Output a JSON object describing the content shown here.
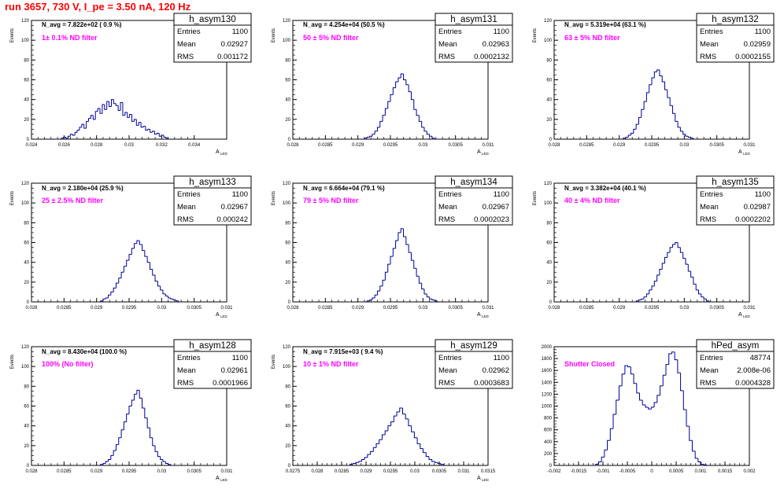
{
  "run_title": "run 3657,   730 V, I_pe = 3.50 nA, 120 Hz",
  "colors": {
    "title": "#ff0000",
    "filter_label": "#ff00ff",
    "hist_line": "#000099",
    "frame": "#000000"
  },
  "chart_data": [
    {
      "type": "histogram",
      "name": "h_asym130",
      "stats": {
        "entries": "1100",
        "mean": "0.02927",
        "rms": "0.001172"
      },
      "navg": "N_avg = 7.822e+02 ( 0.9 %)",
      "filter": "1± 0.1% ND filter",
      "ylabel": "Events",
      "xlabel": "A",
      "xlabel_sub": "LED",
      "xlim": [
        0.024,
        0.036
      ],
      "ylim": [
        0,
        120
      ],
      "xticks": [
        0.024,
        0.026,
        0.028,
        0.03,
        0.032,
        0.034
      ],
      "xtick_labels": [
        "0.024",
        "0.026",
        "0.028",
        "0.03",
        "0.032",
        "0.034"
      ],
      "yticks": [
        0,
        20,
        40,
        60,
        80,
        100,
        120
      ],
      "bin_x": [
        0.0259,
        0.02604,
        0.02618,
        0.02632,
        0.02646,
        0.0266,
        0.02674,
        0.02688,
        0.02702,
        0.02716,
        0.0273,
        0.02744,
        0.02758,
        0.02772,
        0.02786,
        0.028,
        0.02814,
        0.02828,
        0.02842,
        0.02856,
        0.0287,
        0.02884,
        0.02898,
        0.02912,
        0.02926,
        0.0294,
        0.02954,
        0.02968,
        0.02982,
        0.02996,
        0.0301,
        0.03024,
        0.03038,
        0.03052,
        0.03066,
        0.0308,
        0.03094,
        0.03108,
        0.03122,
        0.03136,
        0.0315,
        0.03164,
        0.03178,
        0.03192,
        0.03206,
        0.0322,
        0.03234
      ],
      "counts": [
        1,
        2,
        1,
        3,
        5,
        4,
        7,
        9,
        12,
        15,
        11,
        18,
        21,
        24,
        20,
        28,
        31,
        26,
        35,
        30,
        38,
        33,
        40,
        36,
        34,
        29,
        37,
        24,
        27,
        22,
        25,
        18,
        20,
        14,
        17,
        12,
        13,
        9,
        10,
        7,
        8,
        5,
        6,
        3,
        4,
        2,
        1
      ]
    },
    {
      "type": "histogram",
      "name": "h_asym131",
      "stats": {
        "entries": "1100",
        "mean": "0.02963",
        "rms": "0.0002132"
      },
      "navg": "N_avg = 4.254e+04 (50.5 %)",
      "filter": "50 ± 5% ND filter",
      "ylabel": "Events",
      "xlabel": "A",
      "xlabel_sub": "LED",
      "xlim": [
        0.028,
        0.031
      ],
      "ylim": [
        0,
        120
      ],
      "xticks": [
        0.028,
        0.0285,
        0.029,
        0.0295,
        0.03,
        0.0305,
        0.031
      ],
      "xtick_labels": [
        "0.028",
        "0.0285",
        "0.029",
        "0.0295",
        "0.03",
        "0.0305",
        "0.031"
      ],
      "yticks": [
        0,
        20,
        40,
        60,
        80,
        100,
        120
      ],
      "bin_x": [
        0.02912,
        0.02916,
        0.0292,
        0.02924,
        0.02928,
        0.02932,
        0.02936,
        0.0294,
        0.02944,
        0.02948,
        0.02952,
        0.02956,
        0.0296,
        0.02964,
        0.02968,
        0.02972,
        0.02976,
        0.0298,
        0.02984,
        0.02988,
        0.02992,
        0.02996,
        0.03,
        0.03004,
        0.03008,
        0.03012,
        0.03016
      ],
      "counts": [
        1,
        2,
        3,
        5,
        8,
        12,
        18,
        24,
        31,
        38,
        45,
        52,
        58,
        62,
        66,
        60,
        55,
        48,
        40,
        30,
        24,
        18,
        12,
        8,
        5,
        3,
        1
      ]
    },
    {
      "type": "histogram",
      "name": "h_asym132",
      "stats": {
        "entries": "1100",
        "mean": "0.02959",
        "rms": "0.0002155"
      },
      "navg": "N_avg = 5.319e+04 (63.1 %)",
      "filter": "63 ± 5% ND filter",
      "ylabel": "Events",
      "xlabel": "A",
      "xlabel_sub": "LED",
      "xlim": [
        0.028,
        0.031
      ],
      "ylim": [
        0,
        120
      ],
      "xticks": [
        0.028,
        0.0285,
        0.029,
        0.0295,
        0.03,
        0.0305,
        0.031
      ],
      "xtick_labels": [
        "0.028",
        "0.0285",
        "0.029",
        "0.0295",
        "0.03",
        "0.0305",
        "0.031"
      ],
      "yticks": [
        0,
        20,
        40,
        60,
        80,
        100,
        120
      ],
      "bin_x": [
        0.02908,
        0.02912,
        0.02916,
        0.0292,
        0.02924,
        0.02928,
        0.02932,
        0.02936,
        0.0294,
        0.02944,
        0.02948,
        0.02952,
        0.02956,
        0.0296,
        0.02964,
        0.02968,
        0.02972,
        0.02976,
        0.0298,
        0.02984,
        0.02988,
        0.02992,
        0.02996,
        0.03,
        0.03004,
        0.03008,
        0.03012
      ],
      "counts": [
        1,
        2,
        4,
        6,
        10,
        15,
        22,
        30,
        38,
        47,
        55,
        62,
        68,
        70,
        64,
        58,
        50,
        42,
        34,
        26,
        18,
        12,
        8,
        5,
        3,
        2,
        1
      ]
    },
    {
      "type": "histogram",
      "name": "h_asym133",
      "stats": {
        "entries": "1100",
        "mean": "0.02967",
        "rms": "0.000242"
      },
      "navg": "N_avg = 2.180e+04 (25.9 %)",
      "filter": "25 ± 2.5% ND filter",
      "ylabel": "Events",
      "xlabel": "A",
      "xlabel_sub": "LED",
      "xlim": [
        0.028,
        0.031
      ],
      "ylim": [
        0,
        120
      ],
      "xticks": [
        0.028,
        0.0285,
        0.029,
        0.0295,
        0.03,
        0.0305,
        0.031
      ],
      "xtick_labels": [
        "0.028",
        "0.0285",
        "0.029",
        "0.0295",
        "0.03",
        "0.0305",
        "0.031"
      ],
      "yticks": [
        0,
        20,
        40,
        60,
        80,
        100,
        120
      ],
      "bin_x": [
        0.02908,
        0.02912,
        0.02916,
        0.0292,
        0.02924,
        0.02928,
        0.02932,
        0.02936,
        0.0294,
        0.02944,
        0.02948,
        0.02952,
        0.02956,
        0.0296,
        0.02964,
        0.02968,
        0.02972,
        0.02976,
        0.0298,
        0.02984,
        0.02988,
        0.02992,
        0.02996,
        0.03,
        0.03004,
        0.03008,
        0.03012,
        0.03016,
        0.0302,
        0.03024
      ],
      "counts": [
        1,
        3,
        4,
        7,
        10,
        14,
        19,
        24,
        30,
        36,
        42,
        48,
        54,
        59,
        62,
        58,
        52,
        46,
        40,
        33,
        27,
        21,
        16,
        12,
        8,
        6,
        4,
        3,
        2,
        1
      ]
    },
    {
      "type": "histogram",
      "name": "h_asym134",
      "stats": {
        "entries": "1100",
        "mean": "0.02967",
        "rms": "0.0002023"
      },
      "navg": "N_avg = 6.664e+04 (79.1 %)",
      "filter": "79 ± 5% ND filter",
      "ylabel": "Events",
      "xlabel": "A",
      "xlabel_sub": "LED",
      "xlim": [
        0.028,
        0.031
      ],
      "ylim": [
        0,
        120
      ],
      "xticks": [
        0.028,
        0.0285,
        0.029,
        0.0295,
        0.03,
        0.0305,
        0.031
      ],
      "xtick_labels": [
        "0.028",
        "0.0285",
        "0.029",
        "0.0295",
        "0.03",
        "0.0305",
        "0.031"
      ],
      "yticks": [
        0,
        20,
        40,
        60,
        80,
        100,
        120
      ],
      "bin_x": [
        0.02916,
        0.0292,
        0.02924,
        0.02928,
        0.02932,
        0.02936,
        0.0294,
        0.02944,
        0.02948,
        0.02952,
        0.02956,
        0.0296,
        0.02964,
        0.02968,
        0.02972,
        0.02976,
        0.0298,
        0.02984,
        0.02988,
        0.02992,
        0.02996,
        0.03,
        0.03004,
        0.03008,
        0.03012,
        0.03016,
        0.0302
      ],
      "counts": [
        1,
        2,
        4,
        7,
        11,
        16,
        22,
        30,
        38,
        46,
        54,
        62,
        70,
        74,
        66,
        58,
        50,
        42,
        34,
        26,
        19,
        13,
        8,
        5,
        3,
        2,
        1
      ]
    },
    {
      "type": "histogram",
      "name": "h_asym135",
      "stats": {
        "entries": "1100",
        "mean": "0.02987",
        "rms": "0.0002202"
      },
      "navg": "N_avg = 3.382e+04 (40.1 %)",
      "filter": "40 ± 4% ND filter",
      "ylabel": "Events",
      "xlabel": "A",
      "xlabel_sub": "LED",
      "xlim": [
        0.028,
        0.031
      ],
      "ylim": [
        0,
        120
      ],
      "xticks": [
        0.028,
        0.0285,
        0.029,
        0.0295,
        0.03,
        0.0305,
        0.031
      ],
      "xtick_labels": [
        "0.028",
        "0.0285",
        "0.029",
        "0.0295",
        "0.03",
        "0.0305",
        "0.031"
      ],
      "yticks": [
        0,
        20,
        40,
        60,
        80,
        100,
        120
      ],
      "bin_x": [
        0.02928,
        0.02932,
        0.02936,
        0.0294,
        0.02944,
        0.02948,
        0.02952,
        0.02956,
        0.0296,
        0.02964,
        0.02968,
        0.02972,
        0.02976,
        0.0298,
        0.02984,
        0.02988,
        0.02992,
        0.02996,
        0.03,
        0.03004,
        0.03008,
        0.03012,
        0.03016,
        0.0302,
        0.03024,
        0.03028,
        0.03032,
        0.03036
      ],
      "counts": [
        1,
        2,
        3,
        5,
        8,
        12,
        16,
        21,
        27,
        33,
        39,
        45,
        50,
        55,
        58,
        60,
        55,
        50,
        44,
        38,
        31,
        25,
        18,
        12,
        8,
        5,
        3,
        1
      ]
    },
    {
      "type": "histogram",
      "name": "h_asym128",
      "stats": {
        "entries": "1100",
        "mean": "0.02961",
        "rms": "0.0001966"
      },
      "navg": "N_avg = 8.430e+04 (100.0 %)",
      "filter": "100% (No filter)",
      "ylabel": "Events",
      "xlabel": "A",
      "xlabel_sub": "LED",
      "xlim": [
        0.028,
        0.031
      ],
      "ylim": [
        0,
        120
      ],
      "xticks": [
        0.028,
        0.0285,
        0.029,
        0.0295,
        0.03,
        0.0305,
        0.031
      ],
      "xtick_labels": [
        "0.028",
        "0.0285",
        "0.029",
        "0.0295",
        "0.03",
        "0.0305",
        "0.031"
      ],
      "yticks": [
        0,
        20,
        40,
        60,
        80,
        100,
        120
      ],
      "bin_x": [
        0.02908,
        0.02912,
        0.02916,
        0.0292,
        0.02924,
        0.02928,
        0.02932,
        0.02936,
        0.0294,
        0.02944,
        0.02948,
        0.02952,
        0.02956,
        0.0296,
        0.02964,
        0.02968,
        0.02972,
        0.02976,
        0.0298,
        0.02984,
        0.02988,
        0.02992,
        0.02996,
        0.03,
        0.03004,
        0.03008,
        0.03012
      ],
      "counts": [
        1,
        2,
        4,
        6,
        10,
        15,
        21,
        28,
        36,
        44,
        52,
        60,
        66,
        72,
        76,
        68,
        58,
        48,
        38,
        28,
        20,
        14,
        9,
        6,
        4,
        2,
        1
      ]
    },
    {
      "type": "histogram",
      "name": "h_asym129",
      "stats": {
        "entries": "1100",
        "mean": "0.02962",
        "rms": "0.0003683"
      },
      "navg": "N_avg = 7.915e+03 ( 9.4 %)",
      "filter": "10 ± 1% ND filter",
      "ylabel": "Events",
      "xlabel": "A",
      "xlabel_sub": "LED",
      "xlim": [
        0.0275,
        0.0315
      ],
      "ylim": [
        0,
        120
      ],
      "xticks": [
        0.0275,
        0.028,
        0.0285,
        0.029,
        0.0295,
        0.03,
        0.0305,
        0.031,
        0.0315
      ],
      "xtick_labels": [
        "0.0275",
        "0.028",
        "0.0285",
        "0.029",
        "0.0295",
        "0.03",
        "0.0305",
        "0.031",
        "0.0315"
      ],
      "yticks": [
        0,
        20,
        40,
        60,
        80,
        100,
        120
      ],
      "bin_x": [
        0.0287,
        0.02876,
        0.02882,
        0.02888,
        0.02894,
        0.029,
        0.02906,
        0.02912,
        0.02918,
        0.02924,
        0.0293,
        0.02936,
        0.02942,
        0.02948,
        0.02954,
        0.0296,
        0.02966,
        0.02972,
        0.02978,
        0.02984,
        0.0299,
        0.02996,
        0.03002,
        0.03008,
        0.03014,
        0.0302,
        0.03026,
        0.03032,
        0.03038,
        0.03044,
        0.0305,
        0.03056
      ],
      "counts": [
        1,
        2,
        3,
        4,
        6,
        8,
        11,
        14,
        18,
        22,
        26,
        31,
        35,
        40,
        44,
        50,
        54,
        58,
        52,
        47,
        40,
        34,
        28,
        22,
        17,
        13,
        9,
        6,
        4,
        3,
        2,
        1
      ]
    },
    {
      "type": "histogram",
      "name": "hPed_asym",
      "stats": {
        "entries": "48774",
        "mean": "2.008e-06",
        "rms": "0.0004328"
      },
      "navg": "",
      "filter": "Shutter Closed",
      "ylabel": "",
      "xlabel": "",
      "xlabel_sub": "",
      "xlim": [
        -0.002,
        0.002
      ],
      "ylim": [
        0,
        2000
      ],
      "xticks": [
        -0.002,
        -0.0015,
        -0.001,
        -0.0005,
        0,
        0.0005,
        0.001,
        0.0015,
        0.002
      ],
      "xtick_labels": [
        "-0.002",
        "-0.0015",
        "-0.001",
        "-0.0005",
        "0",
        "0.0005",
        "0.001",
        "0.0015",
        "0.002"
      ],
      "yticks": [
        0,
        200,
        400,
        600,
        800,
        1000,
        1200,
        1400,
        1600,
        1800,
        2000
      ],
      "bin_x": [
        -0.00112,
        -0.00106,
        -0.001,
        -0.00094,
        -0.00088,
        -0.00082,
        -0.00076,
        -0.0007,
        -0.00064,
        -0.00058,
        -0.00052,
        -0.00046,
        -0.0004,
        -0.00034,
        -0.00028,
        -0.00022,
        -0.00016,
        -0.0001,
        -4e-05,
        2e-05,
        8e-05,
        0.00014,
        0.0002,
        0.00026,
        0.00032,
        0.00038,
        0.00044,
        0.0005,
        0.00056,
        0.00062,
        0.00068,
        0.00074,
        0.0008,
        0.00086,
        0.00092,
        0.00098,
        0.00104,
        0.0011
      ],
      "counts": [
        20,
        60,
        140,
        260,
        420,
        620,
        860,
        1100,
        1340,
        1540,
        1680,
        1660,
        1540,
        1380,
        1220,
        1100,
        1020,
        980,
        950,
        980,
        1060,
        1180,
        1340,
        1520,
        1700,
        1880,
        1910,
        1780,
        1560,
        1260,
        940,
        660,
        420,
        240,
        120,
        60,
        20,
        8
      ]
    }
  ]
}
